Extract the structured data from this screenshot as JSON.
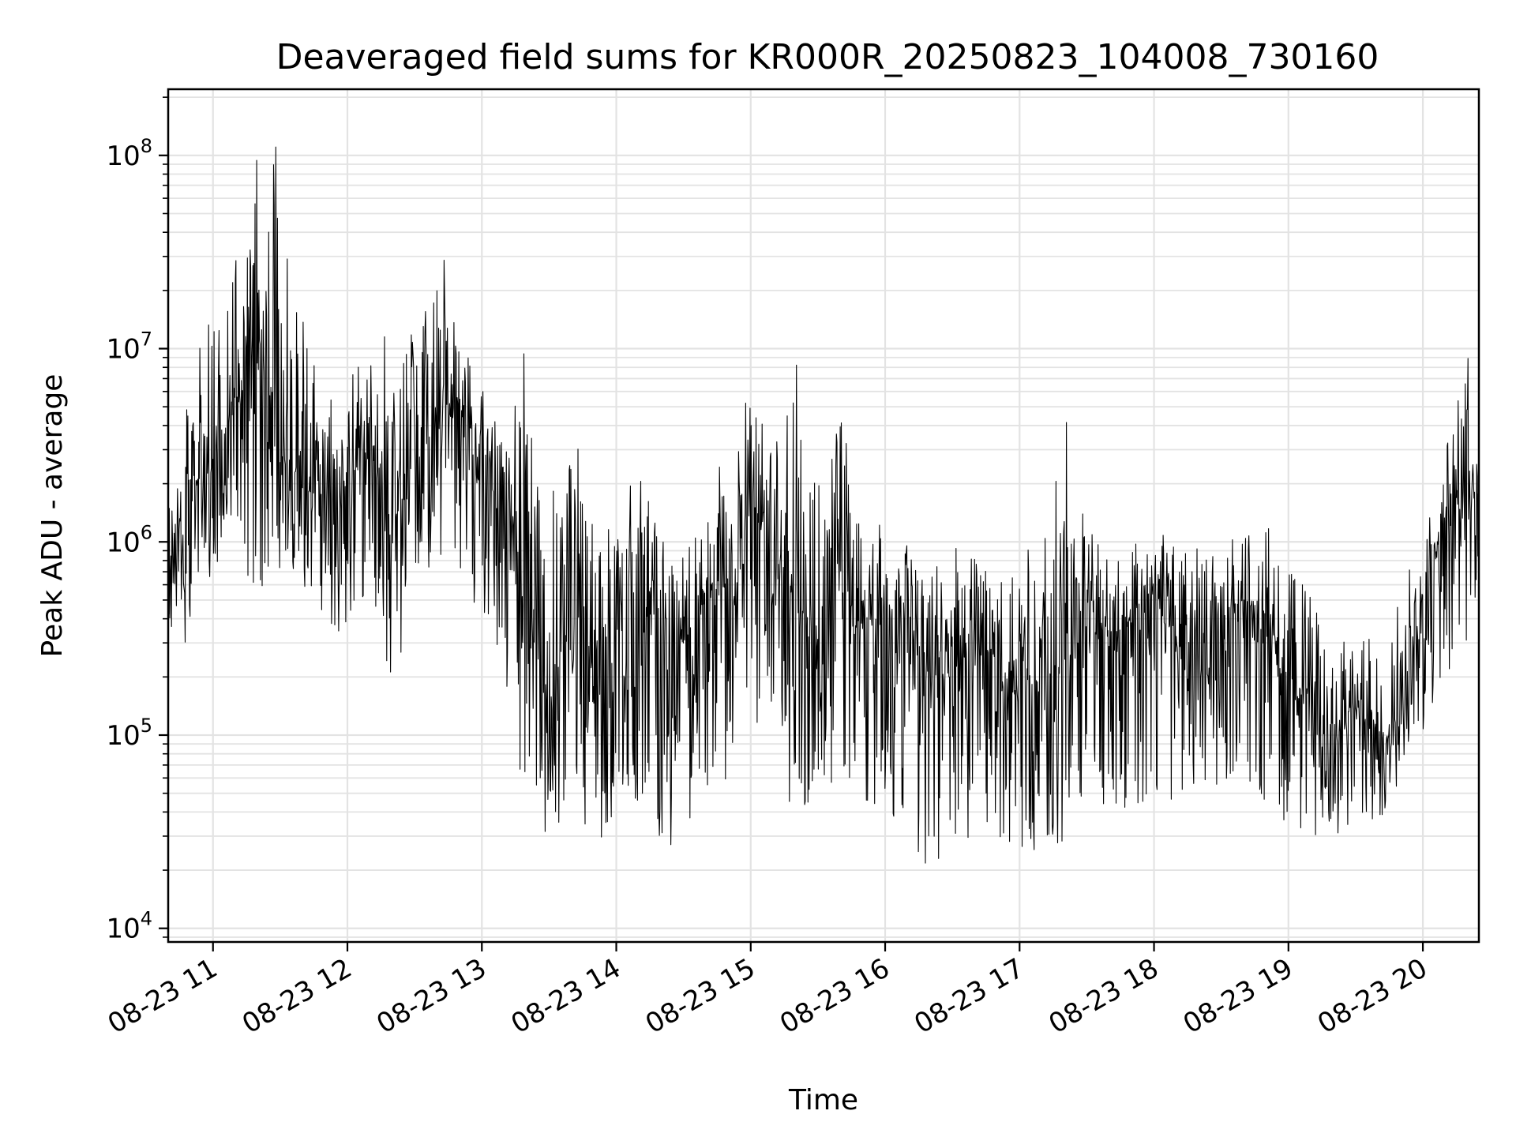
{
  "chart_data": {
    "type": "line",
    "title": "Deaveraged field sums for KR000R_20250823_104008_730160",
    "xlabel": "Time",
    "ylabel": "Peak ADU - average",
    "yscale": "log",
    "ylim": [
      8500,
      220000000
    ],
    "xlim": [
      "08-23 10:40",
      "08-23 20:25"
    ],
    "x_ticks": [
      "08-23 11",
      "08-23 12",
      "08-23 13",
      "08-23 14",
      "08-23 15",
      "08-23 16",
      "08-23 17",
      "08-23 18",
      "08-23 19",
      "08-23 20"
    ],
    "y_ticks": [
      {
        "base": "10",
        "exp": "4",
        "value": 10000
      },
      {
        "base": "10",
        "exp": "5",
        "value": 100000
      },
      {
        "base": "10",
        "exp": "6",
        "value": 1000000
      },
      {
        "base": "10",
        "exp": "7",
        "value": 10000000
      },
      {
        "base": "10",
        "exp": "8",
        "value": 100000000
      }
    ],
    "grid": true,
    "line_color": "#000000",
    "series": [
      {
        "x": [
          "08-23 10:40",
          "08-23 10:50",
          "08-23 11:00",
          "08-23 11:10",
          "08-23 11:20",
          "08-23 11:30",
          "08-23 11:40",
          "08-23 11:50",
          "08-23 12:00",
          "08-23 12:10",
          "08-23 12:20",
          "08-23 12:30",
          "08-23 12:40",
          "08-23 12:50",
          "08-23 13:00",
          "08-23 13:10",
          "08-23 13:20",
          "08-23 13:30",
          "08-23 13:40",
          "08-23 13:50",
          "08-23 14:00",
          "08-23 14:10",
          "08-23 14:20",
          "08-23 14:30",
          "08-23 14:40",
          "08-23 14:50",
          "08-23 15:00",
          "08-23 15:10",
          "08-23 15:20",
          "08-23 15:30",
          "08-23 15:40",
          "08-23 15:50",
          "08-23 16:00",
          "08-23 16:10",
          "08-23 16:20",
          "08-23 16:30",
          "08-23 16:40",
          "08-23 16:50",
          "08-23 17:00",
          "08-23 17:10",
          "08-23 17:20",
          "08-23 17:30",
          "08-23 17:40",
          "08-23 17:50",
          "08-23 18:00",
          "08-23 18:10",
          "08-23 18:20",
          "08-23 18:30",
          "08-23 18:40",
          "08-23 18:50",
          "08-23 19:00",
          "08-23 19:10",
          "08-23 19:20",
          "08-23 19:30",
          "08-23 19:40",
          "08-23 19:50",
          "08-23 20:00",
          "08-23 20:10",
          "08-23 20:20",
          "08-23 20:25"
        ],
        "median": [
          700000,
          1800000,
          2500000,
          5000000,
          8000000,
          3000000,
          2000000,
          1500000,
          2000000,
          3000000,
          1200000,
          2500000,
          4000000,
          5000000,
          3000000,
          2000000,
          500000,
          150000,
          400000,
          250000,
          450000,
          500000,
          400000,
          300000,
          500000,
          600000,
          1200000,
          800000,
          500000,
          300000,
          600000,
          350000,
          400000,
          400000,
          200000,
          200000,
          300000,
          250000,
          150000,
          200000,
          250000,
          500000,
          300000,
          400000,
          500000,
          300000,
          300000,
          400000,
          500000,
          400000,
          200000,
          150000,
          100000,
          120000,
          100000,
          100000,
          400000,
          1500000,
          1800000,
          1500000
        ],
        "low": [
          300000,
          300000,
          600000,
          1000000,
          400000,
          600000,
          500000,
          400000,
          250000,
          600000,
          150000,
          600000,
          800000,
          700000,
          300000,
          200000,
          40000,
          30000,
          40000,
          25000,
          40000,
          40000,
          25000,
          30000,
          50000,
          60000,
          150000,
          60000,
          40000,
          40000,
          60000,
          35000,
          35000,
          30000,
          20000,
          20000,
          25000,
          25000,
          20000,
          25000,
          25000,
          40000,
          40000,
          40000,
          50000,
          40000,
          40000,
          45000,
          60000,
          40000,
          35000,
          30000,
          30000,
          30000,
          35000,
          45000,
          100000,
          200000,
          300000,
          400000
        ],
        "high": [
          2000000,
          10000000,
          30000000,
          60000000,
          120000000,
          110000000,
          40000000,
          8000000,
          6000000,
          15000000,
          12000000,
          20000000,
          40000000,
          15000000,
          8000000,
          4000000,
          15000000,
          2000000,
          5000000,
          1200000,
          1200000,
          5000000,
          1200000,
          1200000,
          1500000,
          4000000,
          8000000,
          6000000,
          10000000,
          4000000,
          8000000,
          2000000,
          1300000,
          1200000,
          1100000,
          1100000,
          1100000,
          1100000,
          1000000,
          1500000,
          6000000,
          1500000,
          1100000,
          1100000,
          1100000,
          1200000,
          1100000,
          1100000,
          1500000,
          1300000,
          1000000,
          800000,
          400000,
          400000,
          400000,
          800000,
          1500000,
          3500000,
          15000000,
          2000000
        ]
      }
    ]
  }
}
